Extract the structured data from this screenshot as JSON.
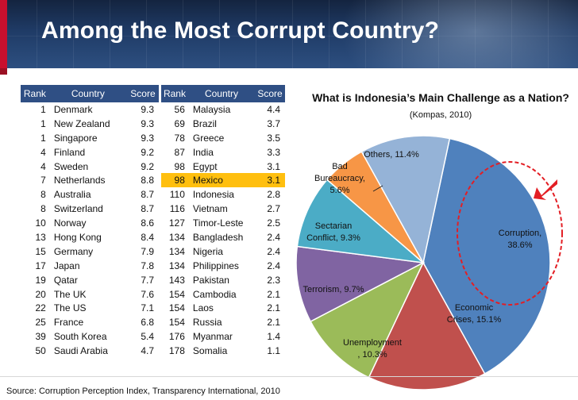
{
  "title": "Among the Most Corrupt Country?",
  "table_left": {
    "headers": [
      "Rank",
      "Country",
      "Score"
    ],
    "rows": [
      {
        "rank": "1",
        "country": "Denmark",
        "score": "9.3"
      },
      {
        "rank": "1",
        "country": "New Zealand",
        "score": "9.3"
      },
      {
        "rank": "1",
        "country": "Singapore",
        "score": "9.3"
      },
      {
        "rank": "4",
        "country": "Finland",
        "score": "9.2"
      },
      {
        "rank": "4",
        "country": "Sweden",
        "score": "9.2"
      },
      {
        "rank": "7",
        "country": "Netherlands",
        "score": "8.8"
      },
      {
        "rank": "8",
        "country": "Australia",
        "score": "8.7"
      },
      {
        "rank": "8",
        "country": "Switzerland",
        "score": "8.7"
      },
      {
        "rank": "10",
        "country": "Norway",
        "score": "8.6"
      },
      {
        "rank": "13",
        "country": "Hong Kong",
        "score": "8.4"
      },
      {
        "rank": "15",
        "country": "Germany",
        "score": "7.9"
      },
      {
        "rank": "17",
        "country": "Japan",
        "score": "7.8"
      },
      {
        "rank": "19",
        "country": "Qatar",
        "score": "7.7"
      },
      {
        "rank": "20",
        "country": "The UK",
        "score": "7.6"
      },
      {
        "rank": "22",
        "country": "The US",
        "score": "7.1"
      },
      {
        "rank": "25",
        "country": "France",
        "score": "6.8"
      },
      {
        "rank": "39",
        "country": "South Korea",
        "score": "5.4"
      },
      {
        "rank": "50",
        "country": "Saudi Arabia",
        "score": "4.7"
      }
    ]
  },
  "table_right": {
    "headers": [
      "Rank",
      "Country",
      "Score"
    ],
    "highlight_row": 5,
    "highlight_color": "#ffbf0f",
    "rows": [
      {
        "rank": "56",
        "country": "Malaysia",
        "score": "4.4"
      },
      {
        "rank": "69",
        "country": "Brazil",
        "score": "3.7"
      },
      {
        "rank": "78",
        "country": "Greece",
        "score": "3.5"
      },
      {
        "rank": "87",
        "country": "India",
        "score": "3.3"
      },
      {
        "rank": "98",
        "country": "Egypt",
        "score": "3.1"
      },
      {
        "rank": "98",
        "country": "Mexico",
        "score": "3.1"
      },
      {
        "rank": "110",
        "country": "Indonesia",
        "score": "2.8"
      },
      {
        "rank": "116",
        "country": "Vietnam",
        "score": "2.7"
      },
      {
        "rank": "127",
        "country": "Timor-Leste",
        "score": "2.5"
      },
      {
        "rank": "134",
        "country": "Bangladesh",
        "score": "2.4"
      },
      {
        "rank": "134",
        "country": "Nigeria",
        "score": "2.4"
      },
      {
        "rank": "134",
        "country": "Philippines",
        "score": "2.4"
      },
      {
        "rank": "143",
        "country": "Pakistan",
        "score": "2.3"
      },
      {
        "rank": "154",
        "country": "Cambodia",
        "score": "2.1"
      },
      {
        "rank": "154",
        "country": "Laos",
        "score": "2.1"
      },
      {
        "rank": "154",
        "country": "Russia",
        "score": "2.1"
      },
      {
        "rank": "176",
        "country": "Myanmar",
        "score": "1.4"
      },
      {
        "rank": "178",
        "country": "Somalia",
        "score": "1.1"
      }
    ]
  },
  "chart_data": {
    "type": "pie",
    "title": "What is Indonesia’s Main Challenge as a Nation?",
    "title_source": "(Kompas, 2010)",
    "slices": [
      {
        "label_lines": [
          "Corruption,",
          "38.6%"
        ],
        "value": 38.6,
        "color": "#4f81bd"
      },
      {
        "label_lines": [
          "Economic",
          "Crises, 15.1%"
        ],
        "value": 15.1,
        "color": "#c0504d"
      },
      {
        "label_lines": [
          "Unemployment",
          ", 10.3%"
        ],
        "value": 10.3,
        "color": "#9bbb59"
      },
      {
        "label_lines": [
          "Terrorism, 9.7%"
        ],
        "value": 9.7,
        "color": "#8064a2"
      },
      {
        "label_lines": [
          "Sectarian",
          "Conflict, 9.3%"
        ],
        "value": 9.3,
        "color": "#4bacc6"
      },
      {
        "label_lines": [
          "Bad",
          "Bureaucracy,",
          "5.6%"
        ],
        "value": 5.6,
        "color": "#f79646"
      },
      {
        "label_lines": [
          "Others, 11.4%"
        ],
        "value": 11.4,
        "color": "#95b3d7"
      }
    ],
    "highlight": {
      "slice": 0,
      "callout": "red dashed ellipse with red arrow",
      "color": "#e31e24"
    }
  },
  "source": "Source: Corruption Perception Index, Transparency International, 2010",
  "colors": {
    "header_bg": "#1f3b66",
    "accent_red": "#c8102e",
    "table_header": "#2f4f84"
  }
}
